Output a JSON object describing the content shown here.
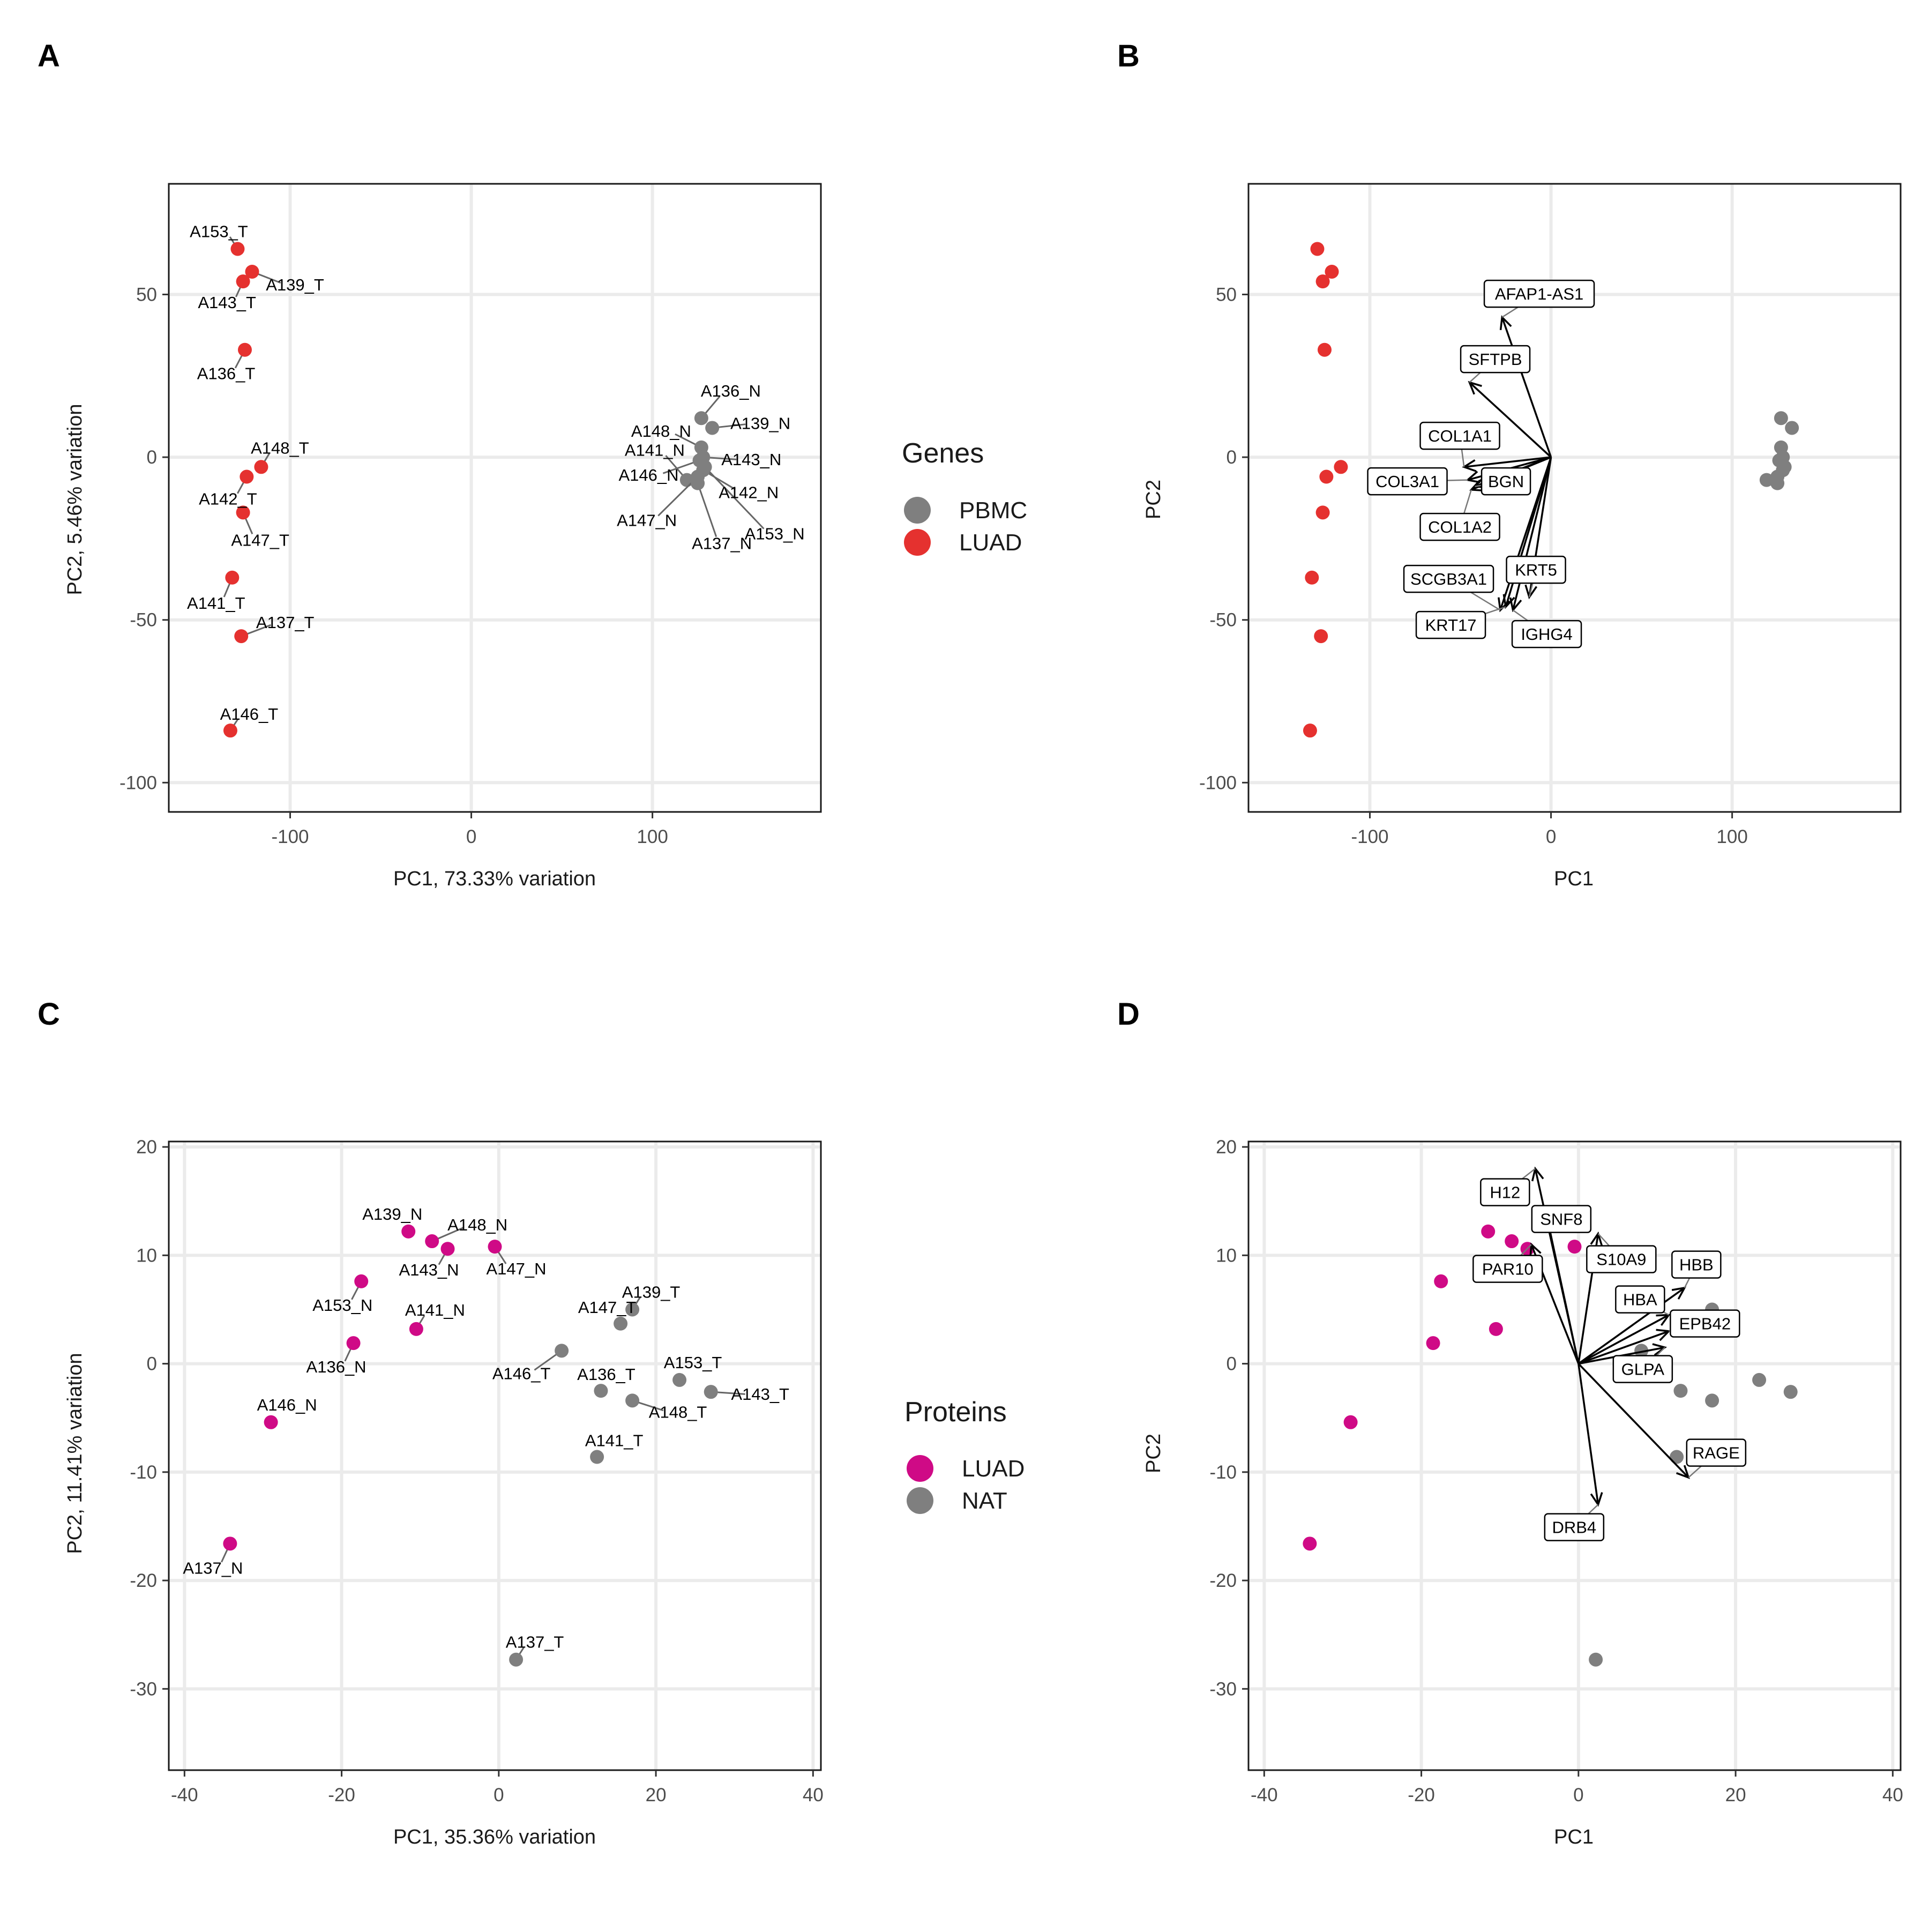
{
  "colors": {
    "red": "#e5312f",
    "magenta": "#cf0a86",
    "grey": "#7f7f7f",
    "grid": "#ebebeb"
  },
  "chart_data": [
    {
      "panel": "A",
      "type": "scatter",
      "xlabel": "PC1, 73.33% variation",
      "ylabel": "PC2, 5.46% variation",
      "xlim": [
        -167,
        193
      ],
      "ylim": [
        -109,
        84
      ],
      "xticks": [
        -100,
        0,
        100
      ],
      "yticks": [
        -100,
        -50,
        0,
        50
      ],
      "grid": true,
      "legend": {
        "title": "Genes",
        "position": "right",
        "entries": [
          {
            "label": "PBMC",
            "color": "#7f7f7f"
          },
          {
            "label": "LUAD",
            "color": "#e5312f"
          }
        ]
      },
      "series": [
        {
          "name": "LUAD",
          "color": "#e5312f",
          "points": [
            {
              "label": "A153_T",
              "x": -129,
              "y": 64
            },
            {
              "label": "A139_T",
              "x": -121,
              "y": 57
            },
            {
              "label": "A143_T",
              "x": -126,
              "y": 54
            },
            {
              "label": "A136_T",
              "x": -125,
              "y": 33
            },
            {
              "label": "A148_T",
              "x": -116,
              "y": -3
            },
            {
              "label": "A142_T",
              "x": -124,
              "y": -6
            },
            {
              "label": "A147_T",
              "x": -126,
              "y": -17
            },
            {
              "label": "A141_T",
              "x": -132,
              "y": -37
            },
            {
              "label": "A137_T",
              "x": -127,
              "y": -55
            },
            {
              "label": "A146_T",
              "x": -133,
              "y": -84
            }
          ]
        },
        {
          "name": "PBMC",
          "color": "#7f7f7f",
          "points": [
            {
              "label": "A136_N",
              "x": 127,
              "y": 12
            },
            {
              "label": "A139_N",
              "x": 133,
              "y": 9
            },
            {
              "label": "A141_N",
              "x": 119,
              "y": -7
            },
            {
              "label": "A148_N",
              "x": 127,
              "y": 3
            },
            {
              "label": "A143_N",
              "x": 128,
              "y": 0
            },
            {
              "label": "A146_N",
              "x": 126,
              "y": -1
            },
            {
              "label": "A142_N",
              "x": 128,
              "y": -4
            },
            {
              "label": "A147_N",
              "x": 125,
              "y": -6
            },
            {
              "label": "A153_N",
              "x": 129,
              "y": -3
            },
            {
              "label": "A137_N",
              "x": 125,
              "y": -8
            }
          ]
        }
      ]
    },
    {
      "panel": "B",
      "type": "scatter",
      "xlabel": "PC1",
      "ylabel": "PC2",
      "xlim": [
        -167,
        193
      ],
      "ylim": [
        -109,
        84
      ],
      "xticks": [
        -100,
        0,
        100
      ],
      "yticks": [
        -100,
        -50,
        0,
        50
      ],
      "grid": true,
      "series": [
        {
          "name": "LUAD",
          "color": "#e5312f",
          "points": [
            {
              "x": -129,
              "y": 64
            },
            {
              "x": -121,
              "y": 57
            },
            {
              "x": -126,
              "y": 54
            },
            {
              "x": -125,
              "y": 33
            },
            {
              "x": -116,
              "y": -3
            },
            {
              "x": -124,
              "y": -6
            },
            {
              "x": -126,
              "y": -17
            },
            {
              "x": -132,
              "y": -37
            },
            {
              "x": -127,
              "y": -55
            },
            {
              "x": -133,
              "y": -84
            }
          ]
        },
        {
          "name": "PBMC",
          "color": "#7f7f7f",
          "points": [
            {
              "x": 127,
              "y": 12
            },
            {
              "x": 133,
              "y": 9
            },
            {
              "x": 119,
              "y": -7
            },
            {
              "x": 127,
              "y": 3
            },
            {
              "x": 128,
              "y": 0
            },
            {
              "x": 126,
              "y": -1
            },
            {
              "x": 128,
              "y": -4
            },
            {
              "x": 125,
              "y": -6
            },
            {
              "x": 129,
              "y": -3
            },
            {
              "x": 125,
              "y": -8
            }
          ]
        }
      ],
      "loadings": [
        {
          "label": "AFAP1-AS1",
          "x": -27,
          "y": 43
        },
        {
          "label": "SFTPB",
          "x": -45,
          "y": 23
        },
        {
          "label": "COL1A1",
          "x": -48,
          "y": -3
        },
        {
          "label": "COL3A1",
          "x": -46,
          "y": -7
        },
        {
          "label": "BGN",
          "x": -42,
          "y": -9
        },
        {
          "label": "COL1A2",
          "x": -44,
          "y": -10
        },
        {
          "label": "SCGB3A1",
          "x": -28,
          "y": -47
        },
        {
          "label": "KRT5",
          "x": -12,
          "y": -43
        },
        {
          "label": "KRT17",
          "x": -25,
          "y": -46
        },
        {
          "label": "IGHG4",
          "x": -21,
          "y": -47
        }
      ]
    },
    {
      "panel": "C",
      "type": "scatter",
      "xlabel": "PC1, 35.36% variation",
      "ylabel": "PC2, 11.41% variation",
      "xlim": [
        -42,
        41
      ],
      "ylim": [
        -37.5,
        20.5
      ],
      "xticks": [
        -40,
        -20,
        0,
        20,
        40
      ],
      "yticks": [
        -30,
        -20,
        -10,
        0,
        10,
        20
      ],
      "grid": true,
      "legend": {
        "title": "Proteins",
        "position": "right",
        "entries": [
          {
            "label": "LUAD",
            "color": "#cf0a86"
          },
          {
            "label": "NAT",
            "color": "#7f7f7f"
          }
        ]
      },
      "series": [
        {
          "name": "LUAD",
          "color": "#cf0a86",
          "points": [
            {
              "label": "A139_N",
              "x": -11.5,
              "y": 12.2
            },
            {
              "label": "A148_N",
              "x": -8.5,
              "y": 11.3
            },
            {
              "label": "A143_N",
              "x": -6.5,
              "y": 10.6
            },
            {
              "label": "A147_N",
              "x": -0.5,
              "y": 10.8
            },
            {
              "label": "A153_N",
              "x": -17.5,
              "y": 7.6
            },
            {
              "label": "A141_N",
              "x": -10.5,
              "y": 3.2
            },
            {
              "label": "A136_N",
              "x": -18.5,
              "y": 1.9
            },
            {
              "label": "A146_N",
              "x": -29,
              "y": -5.4
            },
            {
              "label": "A137_N",
              "x": -34.2,
              "y": -16.6
            }
          ]
        },
        {
          "name": "NAT",
          "color": "#7f7f7f",
          "points": [
            {
              "label": "A139_T",
              "x": 17,
              "y": 5
            },
            {
              "label": "A147_T",
              "x": 15.5,
              "y": 3.7
            },
            {
              "label": "A146_T",
              "x": 8,
              "y": 1.2
            },
            {
              "label": "A136_T",
              "x": 13,
              "y": -2.5
            },
            {
              "label": "A153_T",
              "x": 23,
              "y": -1.5
            },
            {
              "label": "A143_T",
              "x": 27,
              "y": -2.6
            },
            {
              "label": "A148_T",
              "x": 17,
              "y": -3.4
            },
            {
              "label": "A141_T",
              "x": 12.5,
              "y": -8.6
            },
            {
              "label": "A137_T",
              "x": 2.2,
              "y": -27.3
            }
          ]
        }
      ]
    },
    {
      "panel": "D",
      "type": "scatter",
      "xlabel": "PC1",
      "ylabel": "PC2",
      "xlim": [
        -42,
        41
      ],
      "ylim": [
        -37.5,
        20.5
      ],
      "xticks": [
        -40,
        -20,
        0,
        20,
        40
      ],
      "yticks": [
        -30,
        -20,
        -10,
        0,
        10,
        20
      ],
      "grid": true,
      "series": [
        {
          "name": "LUAD",
          "color": "#cf0a86",
          "points": [
            {
              "x": -11.5,
              "y": 12.2
            },
            {
              "x": -8.5,
              "y": 11.3
            },
            {
              "x": -6.5,
              "y": 10.6
            },
            {
              "x": -0.5,
              "y": 10.8
            },
            {
              "x": -17.5,
              "y": 7.6
            },
            {
              "x": -10.5,
              "y": 3.2
            },
            {
              "x": -18.5,
              "y": 1.9
            },
            {
              "x": -29,
              "y": -5.4
            },
            {
              "x": -34.2,
              "y": -16.6
            }
          ]
        },
        {
          "name": "NAT",
          "color": "#7f7f7f",
          "points": [
            {
              "x": 17,
              "y": 5
            },
            {
              "x": 15.5,
              "y": 3.7
            },
            {
              "x": 8,
              "y": 1.2
            },
            {
              "x": 13,
              "y": -2.5
            },
            {
              "x": 23,
              "y": -1.5
            },
            {
              "x": 27,
              "y": -2.6
            },
            {
              "x": 17,
              "y": -3.4
            },
            {
              "x": 12.5,
              "y": -8.6
            },
            {
              "x": 2.2,
              "y": -27.3
            }
          ]
        }
      ],
      "loadings": [
        {
          "label": "H12",
          "x": -5.5,
          "y": 18
        },
        {
          "label": "SNF8",
          "x": -4,
          "y": 13.5
        },
        {
          "label": "PAR10",
          "x": -6,
          "y": 11
        },
        {
          "label": "S10A9",
          "x": 2.5,
          "y": 12
        },
        {
          "label": "HBB",
          "x": 13.5,
          "y": 7
        },
        {
          "label": "HBA",
          "x": 11.5,
          "y": 4.5
        },
        {
          "label": "EPB42",
          "x": 11.5,
          "y": 3
        },
        {
          "label": "GLPA",
          "x": 11,
          "y": 1.5
        },
        {
          "label": "RAGE",
          "x": 14,
          "y": -10.5
        },
        {
          "label": "DRB4",
          "x": 2.5,
          "y": -13
        }
      ]
    }
  ]
}
